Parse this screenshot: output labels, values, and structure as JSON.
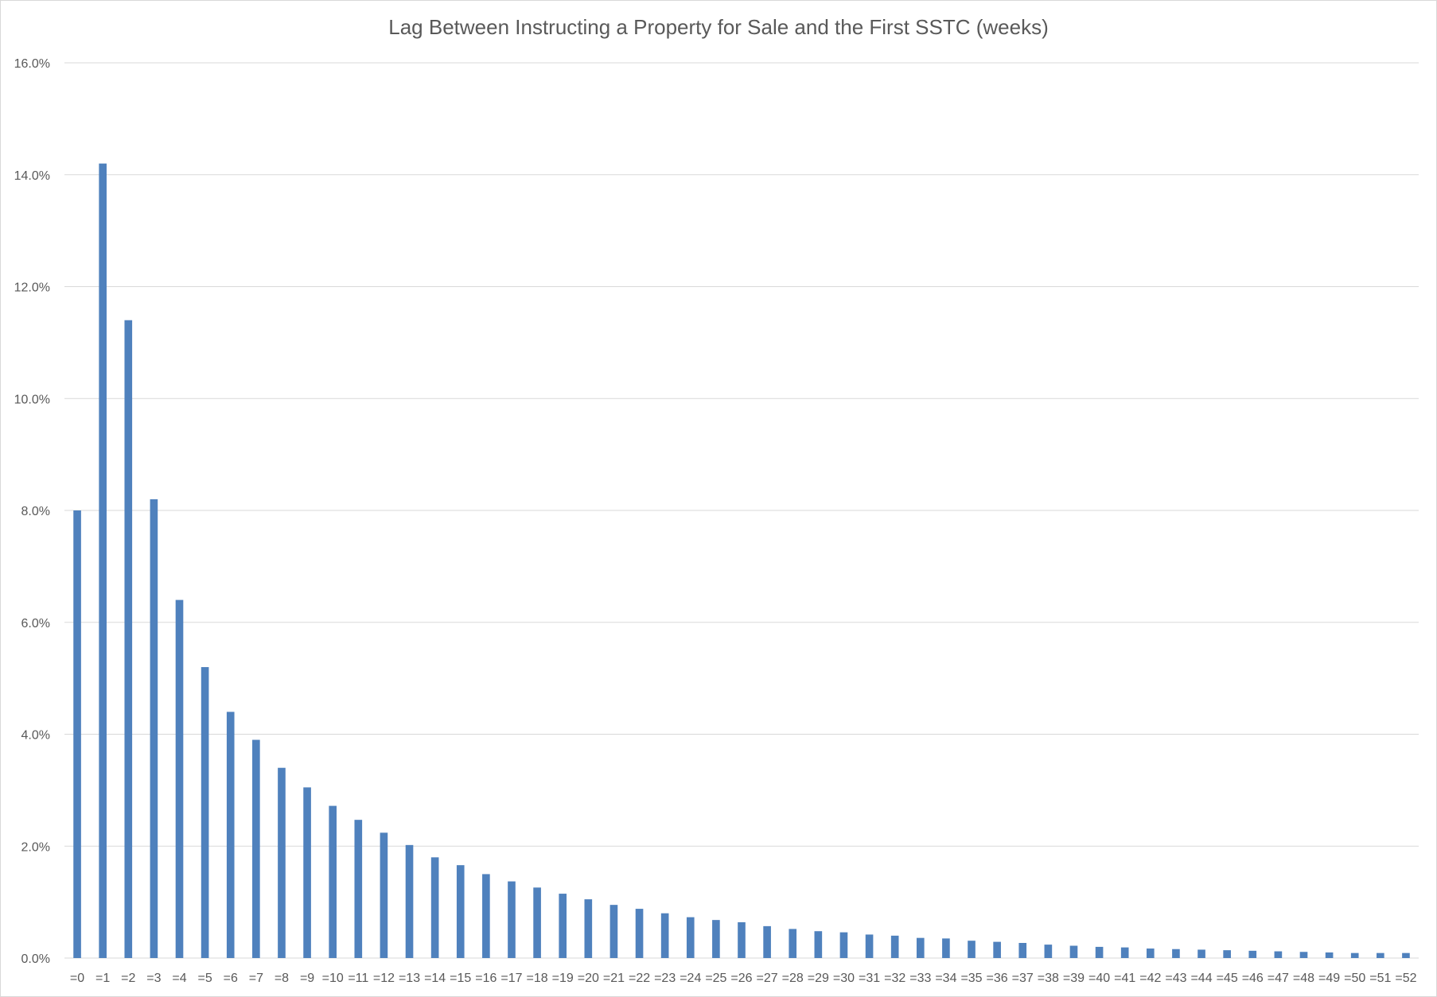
{
  "chart_data": {
    "type": "bar",
    "title": "Lag Between Instructing a Property for Sale and the First SSTC (weeks)",
    "xlabel": "",
    "ylabel": "",
    "ylim": [
      0,
      16
    ],
    "ytick_step": 2,
    "ytick_labels": [
      "0.0%",
      "2.0%",
      "4.0%",
      "6.0%",
      "8.0%",
      "10.0%",
      "12.0%",
      "14.0%",
      "16.0%"
    ],
    "grid": true,
    "legend": "none",
    "bar_color": "#4f81bd",
    "categories": [
      "=0",
      "=1",
      "=2",
      "=3",
      "=4",
      "=5",
      "=6",
      "=7",
      "=8",
      "=9",
      "=10",
      "=11",
      "=12",
      "=13",
      "=14",
      "=15",
      "=16",
      "=17",
      "=18",
      "=19",
      "=20",
      "=21",
      "=22",
      "=23",
      "=24",
      "=25",
      "=26",
      "=27",
      "=28",
      "=29",
      "=30",
      "=31",
      "=32",
      "=33",
      "=34",
      "=35",
      "=36",
      "=37",
      "=38",
      "=39",
      "=40",
      "=41",
      "=42",
      "=43",
      "=44",
      "=45",
      "=46",
      "=47",
      "=48",
      "=49",
      "=50",
      "=51",
      "=52"
    ],
    "values": [
      8.0,
      14.2,
      11.4,
      8.2,
      6.4,
      5.2,
      4.4,
      3.9,
      3.4,
      3.05,
      2.72,
      2.47,
      2.24,
      2.02,
      1.8,
      1.66,
      1.5,
      1.37,
      1.26,
      1.15,
      1.05,
      0.95,
      0.88,
      0.8,
      0.73,
      0.68,
      0.64,
      0.57,
      0.52,
      0.48,
      0.46,
      0.42,
      0.4,
      0.36,
      0.35,
      0.31,
      0.29,
      0.27,
      0.24,
      0.22,
      0.2,
      0.19,
      0.17,
      0.16,
      0.15,
      0.14,
      0.13,
      0.12,
      0.11,
      0.1,
      0.09,
      0.09,
      0.09
    ]
  }
}
